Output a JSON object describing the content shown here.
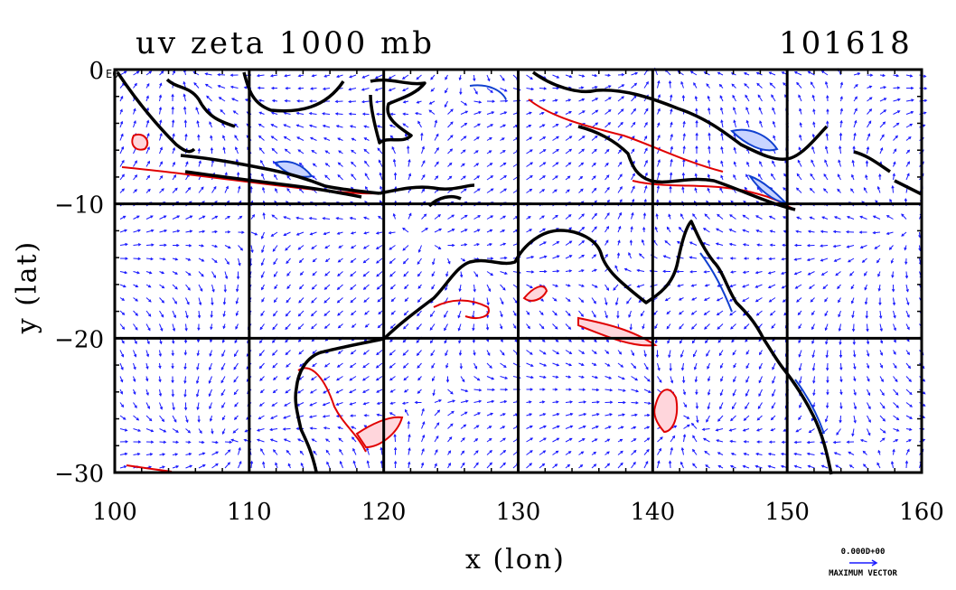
{
  "figure": {
    "title_left": "uv zeta 1000 mb",
    "title_right": "101618",
    "corner_tag": "E0",
    "vector_legend": {
      "magnitude": "0.000D+00",
      "label": "MAXIMUM VECTOR"
    },
    "colors": {
      "vectors": "#1a1aff",
      "positive_contour": "#e00000",
      "negative_contour": "#1040d0",
      "positive_fill": "#ffd6dc",
      "coastline": "#000000",
      "grid": "#000000"
    }
  },
  "chart_data": {
    "type": "map",
    "projection": "lat-lon",
    "xlabel": "x (lon)",
    "ylabel": "y (lat)",
    "xlim": [
      100,
      160
    ],
    "ylim": [
      -30,
      0
    ],
    "x_ticks": [
      100,
      110,
      120,
      130,
      140,
      150,
      160
    ],
    "y_ticks": [
      -30,
      -20,
      -10,
      0
    ],
    "x_tick_labels": [
      "100",
      "110",
      "120",
      "130",
      "140",
      "150",
      "160"
    ],
    "y_tick_labels": [
      "−30",
      "−20",
      "−10",
      "0"
    ],
    "grid": true,
    "fields": [
      "wind vectors (u,v)",
      "relative vorticity (zeta) contours"
    ],
    "level": "1000 mb"
  }
}
